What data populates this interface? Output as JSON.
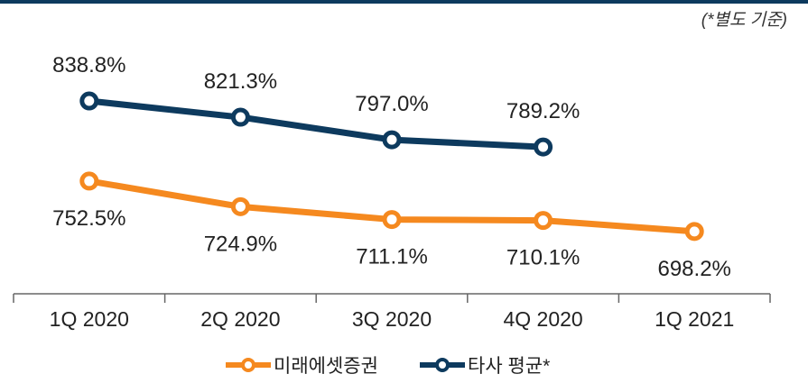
{
  "chart_data": {
    "type": "line",
    "annotation": "(*별도 기준)",
    "categories": [
      "1Q 2020",
      "2Q 2020",
      "3Q 2020",
      "4Q 2020",
      "1Q 2021"
    ],
    "series": [
      {
        "name": "미래에셋증권",
        "color": "#f5891f",
        "values": [
          752.5,
          724.9,
          711.1,
          710.1,
          698.2
        ],
        "value_labels": [
          "752.5%",
          "724.9%",
          "711.1%",
          "710.1%",
          "698.2%"
        ]
      },
      {
        "name": "타사 평균*",
        "color": "#0d3a5e",
        "values": [
          838.8,
          821.3,
          797.0,
          789.2,
          null
        ],
        "value_labels": [
          "838.8%",
          "821.3%",
          "797.0%",
          "789.2%",
          null
        ]
      }
    ],
    "ylim": [
      600,
      900
    ],
    "legend": "bottom"
  }
}
